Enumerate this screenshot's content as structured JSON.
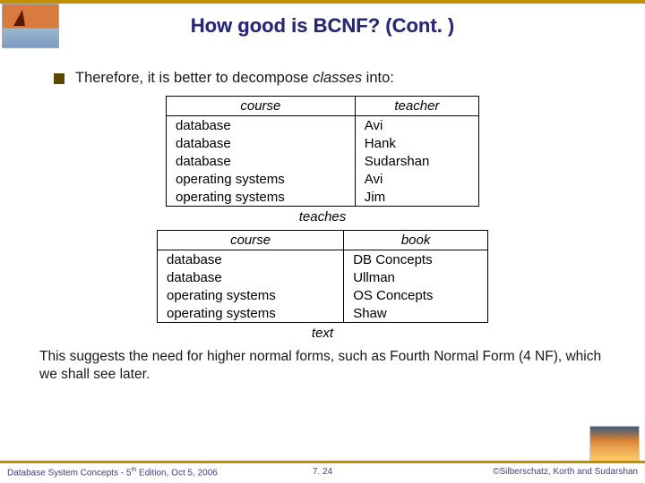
{
  "title": "How good is BCNF? (Cont. )",
  "bullet": {
    "prefix": "Therefore, it is better to decompose ",
    "italic": "classes",
    "suffix": " into:"
  },
  "table1": {
    "headers": [
      "course",
      "teacher"
    ],
    "rows": [
      [
        "database",
        "Avi"
      ],
      [
        "database",
        "Hank"
      ],
      [
        "database",
        "Sudarshan"
      ],
      [
        "operating systems",
        "Avi"
      ],
      [
        "operating systems",
        "Jim"
      ]
    ],
    "caption": "teaches"
  },
  "table2": {
    "headers": [
      "course",
      "book"
    ],
    "rows": [
      [
        "database",
        "DB Concepts"
      ],
      [
        "database",
        "Ullman"
      ],
      [
        "operating systems",
        "OS Concepts"
      ],
      [
        "operating systems",
        "Shaw"
      ]
    ],
    "caption": "text"
  },
  "closing": "This suggests the need for higher normal forms, such as Fourth Normal Form (4 NF), which we shall see later.",
  "footer": {
    "left_a": "Database System Concepts - 5",
    "left_b": " Edition, Oct 5, 2006",
    "center": "7. 24",
    "right": "©Silberschatz, Korth and Sudarshan"
  },
  "styling": {
    "title_color": "#282878",
    "accent_color": "#c09000",
    "bullet_color": "#5a4800",
    "body_fontsize": 15,
    "title_fontsize": 22,
    "background": "#ffffff"
  }
}
